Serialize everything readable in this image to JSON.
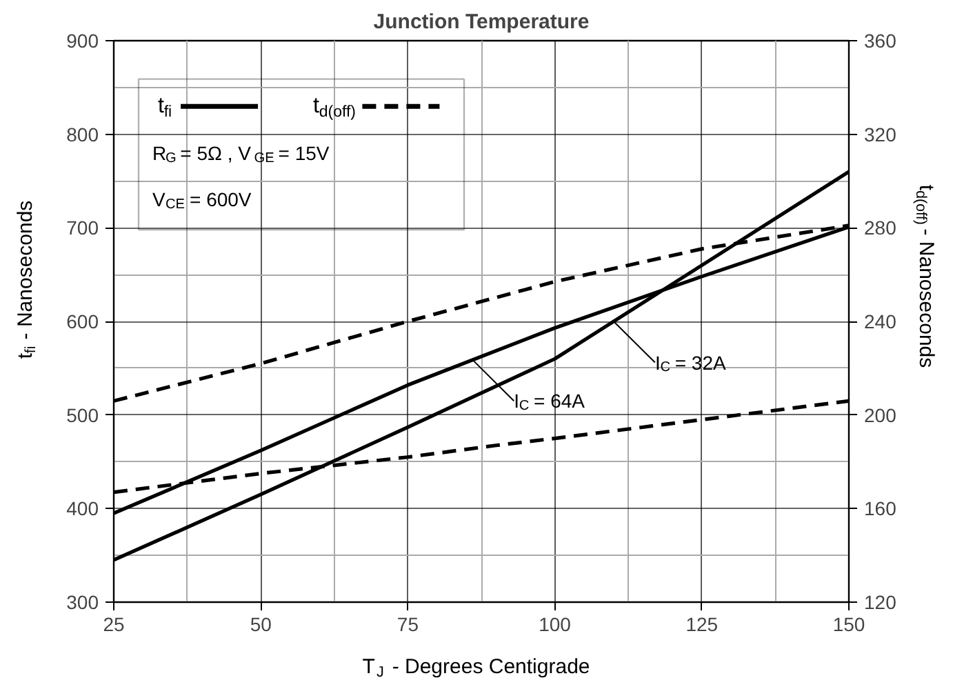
{
  "chart_data": {
    "type": "line",
    "title": "Junction Temperature",
    "xlabel": "T$_{J}$ - Degrees Centigrade",
    "ylabel": "t$_{fi}$ - Nanoseconds",
    "y2label": "t$_{d(off)}$ - Nanoseconds",
    "series": [
      {
        "name": "t$_{fi}$",
        "color": "#000000",
        "line_style": "solid",
        "x": [
          25,
          50,
          75,
          100,
          125,
          150
        ],
        "values": [
          395,
          462,
          532,
          593,
          648,
          701
        ]
      },
      {
        "color": "#000000",
        "line_style": "solid",
        "x": [
          25,
          50,
          75,
          100,
          125,
          150
        ],
        "values": [
          345,
          415,
          487,
          560,
          660,
          760
        ]
      },
      {
        "name": "t$_{d(off)}$",
        "color": "#000000",
        "line_style": "dashed",
        "axis": "y2",
        "x": [
          25,
          50,
          75,
          100,
          125,
          150
        ],
        "values": [
          206,
          222,
          240,
          257,
          271,
          281
        ]
      },
      {
        "color": "#000000",
        "line_style": "dashed",
        "axis": "y2",
        "x": [
          25,
          50,
          75,
          90,
          100,
          125,
          150
        ],
        "values": [
          167,
          175,
          182,
          187,
          190,
          198,
          206
        ]
      }
    ],
    "annotations": [
      "R$_{G}$ = 5Ω ,  V$_{GE}$ = 15V",
      "V$_{CE}$ = 600V",
      {
        "text": "I$_{C}$ = 32A",
        "x": 110,
        "y": 600
      },
      {
        "text": "I$_{C}$ = 64A",
        "x": 86,
        "y": 559
      }
    ],
    "xlim": [
      25,
      150
    ],
    "xticks": [
      25,
      {
        "value": 37.5,
        "label": null
      },
      50,
      {
        "value": 62.5,
        "label": null
      },
      75,
      {
        "value": 87.5,
        "label": null
      },
      100,
      {
        "value": 112.5,
        "label": null
      },
      125,
      {
        "value": 137.5,
        "label": null
      },
      150
    ],
    "ylim": [
      300,
      900
    ],
    "yticks": [
      300,
      {
        "value": 350,
        "label": null
      },
      400,
      {
        "value": 450,
        "label": null
      },
      500,
      {
        "value": 550,
        "label": null
      },
      600,
      {
        "value": 650,
        "label": null
      },
      700,
      {
        "value": 750,
        "label": null
      },
      800,
      {
        "value": 850,
        "label": null
      },
      900
    ],
    "y2lim": [
      120,
      360
    ],
    "y2ticks": [
      120,
      160,
      200,
      240,
      280,
      320,
      360
    ],
    "grid": true,
    "legend": "top left",
    "marker": "none"
  }
}
